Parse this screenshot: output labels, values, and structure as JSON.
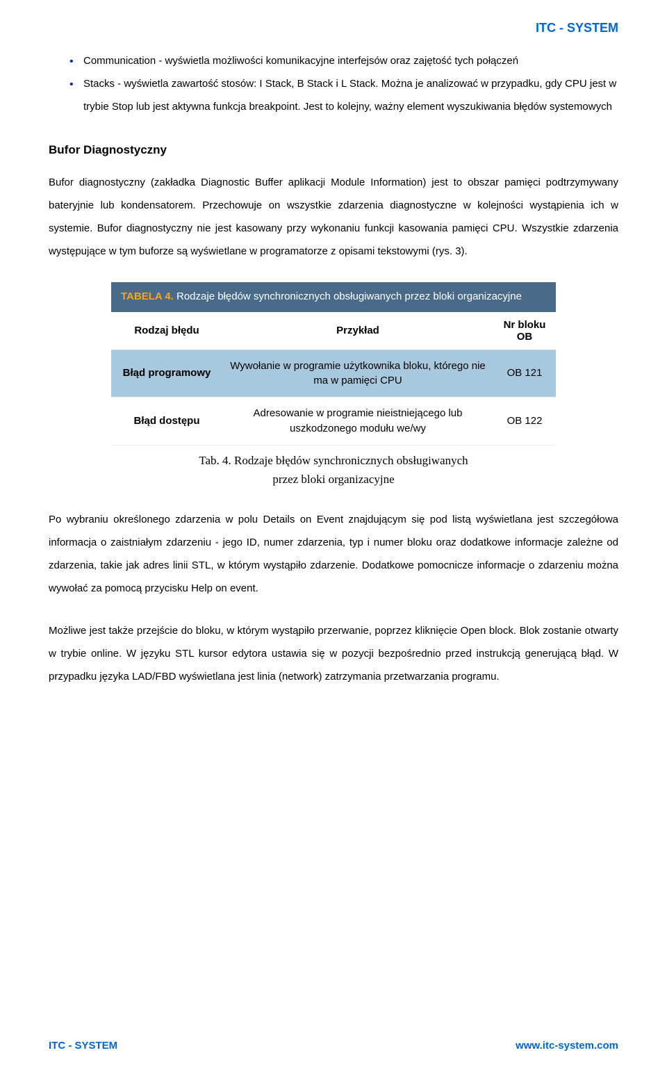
{
  "header": {
    "brand": "ITC - SYSTEM"
  },
  "bullets": {
    "item1": "Communication - wyświetla możliwości komunikacyjne interfejsów oraz zajętość tych połączeń",
    "item2": "Stacks - wyświetla zawartość stosów: I Stack, B Stack i L Stack. Można je analizować w przypadku, gdy CPU jest w trybie Stop lub jest aktywna funkcja breakpoint. Jest to kolejny, ważny element wyszukiwania błędów systemowych"
  },
  "section": {
    "heading": "Bufor Diagnostyczny"
  },
  "para1": "Bufor diagnostyczny (zakładka Diagnostic Buffer aplikacji Module Information) jest to obszar pamięci podtrzymywany bateryjnie lub kondensatorem. Przechowuje on wszystkie zdarzenia diagnostyczne w kolejności wystąpienia ich w systemie. Bufor diagnostyczny nie jest kasowany przy wykonaniu funkcji kasowania pamięci CPU. Wszystkie zdarzenia występujące w tym buforze są wyświetlane w programatorze z opisami tekstowymi (rys. 3).",
  "table": {
    "title_prefix": "TABELA 4.",
    "title_rest": " Rodzaje błędów synchronicznych obsługiwanych przez bloki organizacyjne",
    "headers": {
      "c1": "Rodzaj błędu",
      "c2": "Przykład",
      "c3": "Nr bloku OB"
    },
    "rows": [
      {
        "c1": "Błąd programowy",
        "c2": "Wywołanie w programie użytkownika bloku, którego nie ma w pamięci CPU",
        "c3": "OB 121"
      },
      {
        "c1": "Błąd dostępu",
        "c2": "Adresowanie w programie nieistniejącego lub uszkodzonego modułu we/wy",
        "c3": "OB 122"
      }
    ],
    "caption_line1": "Tab. 4. Rodzaje błędów synchronicznych obsługiwanych",
    "caption_line2": "przez bloki organizacyjne",
    "style": {
      "title_bg": "#4a6a8a",
      "title_color": "#ffffff",
      "title_accent": "#f5a623",
      "header_bg": "#ffffff",
      "row_alt_bg": "#a8c8de",
      "row_bg": "#ffffff",
      "border_color": "#cccccc",
      "font_size_pt": 11
    }
  },
  "para2": "Po wybraniu określonego zdarzenia w polu Details on Event znajdującym się pod listą wyświetlana jest szczegółowa informacja o zaistniałym zdarzeniu - jego ID, numer zdarzenia, typ i numer bloku oraz dodatkowe informacje zależne od zdarzenia, takie jak adres linii STL, w którym wystąpiło zdarzenie. Dodatkowe pomocnicze informacje o zdarzeniu można wywołać za pomocą przycisku Help on event.",
  "para3": "Możliwe jest także przejście do bloku, w którym wystąpiło przerwanie, poprzez kliknięcie Open block. Blok zostanie otwarty w trybie online. W języku STL kursor edytora ustawia się w pozycji bezpośrednio przed instrukcją generującą błąd. W przypadku języka LAD/FBD wyświetlana jest linia (network) zatrzymania przetwarzania programu.",
  "footer": {
    "left": "ITC - SYSTEM",
    "right": "www.itc-system.com"
  }
}
